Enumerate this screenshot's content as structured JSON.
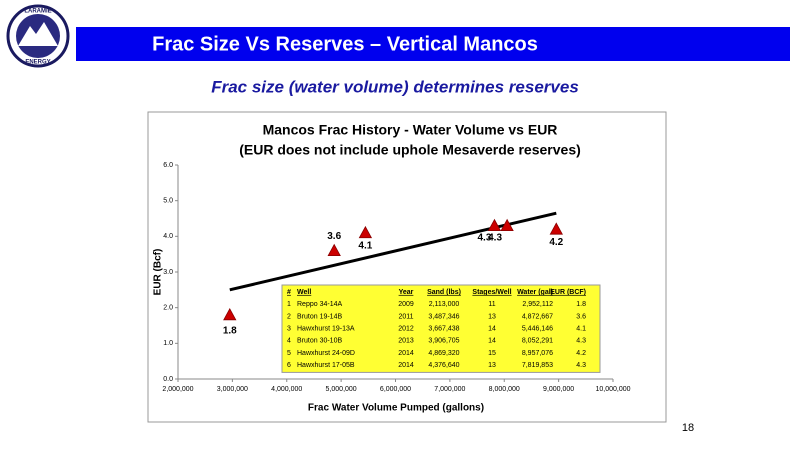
{
  "logo": {
    "top": "LARAMIE",
    "bottom": "ENERGY"
  },
  "header": {
    "title": "Frac Size Vs Reserves – Vertical Mancos",
    "subtitle": "Frac size (water volume) determines reserves"
  },
  "page_number": "18",
  "chart_data": {
    "type": "scatter",
    "title": [
      "Mancos Frac History - Water Volume vs EUR",
      "(EUR does not include uphole Mesaverde reserves)"
    ],
    "xlabel": "Frac Water Volume Pumped (gallons)",
    "ylabel": "EUR (Bcf)",
    "x": [
      2952112,
      4872667,
      5446146,
      8052291,
      8957076,
      7819853
    ],
    "values": [
      1.8,
      3.6,
      4.1,
      4.3,
      4.2,
      4.3
    ],
    "color": "#cc0000",
    "trendline": {
      "x": [
        2952112,
        8957076
      ],
      "y": [
        2.5,
        4.65
      ]
    },
    "xlim": [
      2000000,
      10000000
    ],
    "xticks": [
      {
        "value": 2000000,
        "label": "2,000,000"
      },
      {
        "value": 3000000,
        "label": "3,000,000"
      },
      {
        "value": 4000000,
        "label": "4,000,000"
      },
      {
        "value": 5000000,
        "label": "5,000,000"
      },
      {
        "value": 6000000,
        "label": "6,000,000"
      },
      {
        "value": 7000000,
        "label": "7,000,000"
      },
      {
        "value": 8000000,
        "label": "8,000,000"
      },
      {
        "value": 9000000,
        "label": "9,000,000"
      },
      {
        "value": 10000000,
        "label": "10,000,000"
      }
    ],
    "ylim": [
      0,
      6
    ],
    "yticks": [
      {
        "value": 0,
        "label": "0.0"
      },
      {
        "value": 1,
        "label": "1.0"
      },
      {
        "value": 2,
        "label": "2.0"
      },
      {
        "value": 3,
        "label": "3.0"
      },
      {
        "value": 4,
        "label": "4.0"
      },
      {
        "value": 5,
        "label": "5.0"
      },
      {
        "value": 6,
        "label": "6.0"
      }
    ]
  },
  "table": {
    "header": [
      "#",
      "Well",
      "Year",
      "Sand (lbs)",
      "Stages/Well",
      "Water (gal)",
      "EUR (BCF)"
    ],
    "rows": [
      [
        "1",
        "Reppo 34-14A",
        "2009",
        "2,113,000",
        "11",
        "2,952,112",
        "1.8"
      ],
      [
        "2",
        "Bruton 19-14B",
        "2011",
        "3,487,346",
        "13",
        "4,872,667",
        "3.6"
      ],
      [
        "3",
        "Hawxhurst 19-13A",
        "2012",
        "3,667,438",
        "14",
        "5,446,146",
        "4.1"
      ],
      [
        "4",
        "Bruton 30-10B",
        "2013",
        "3,906,705",
        "14",
        "8,052,291",
        "4.3"
      ],
      [
        "5",
        "Hawxhurst 24-09D",
        "2014",
        "4,869,320",
        "15",
        "8,957,076",
        "4.2"
      ],
      [
        "6",
        "Hawxhurst 17-05B",
        "2014",
        "4,376,640",
        "13",
        "7,819,853",
        "4.3"
      ]
    ]
  }
}
